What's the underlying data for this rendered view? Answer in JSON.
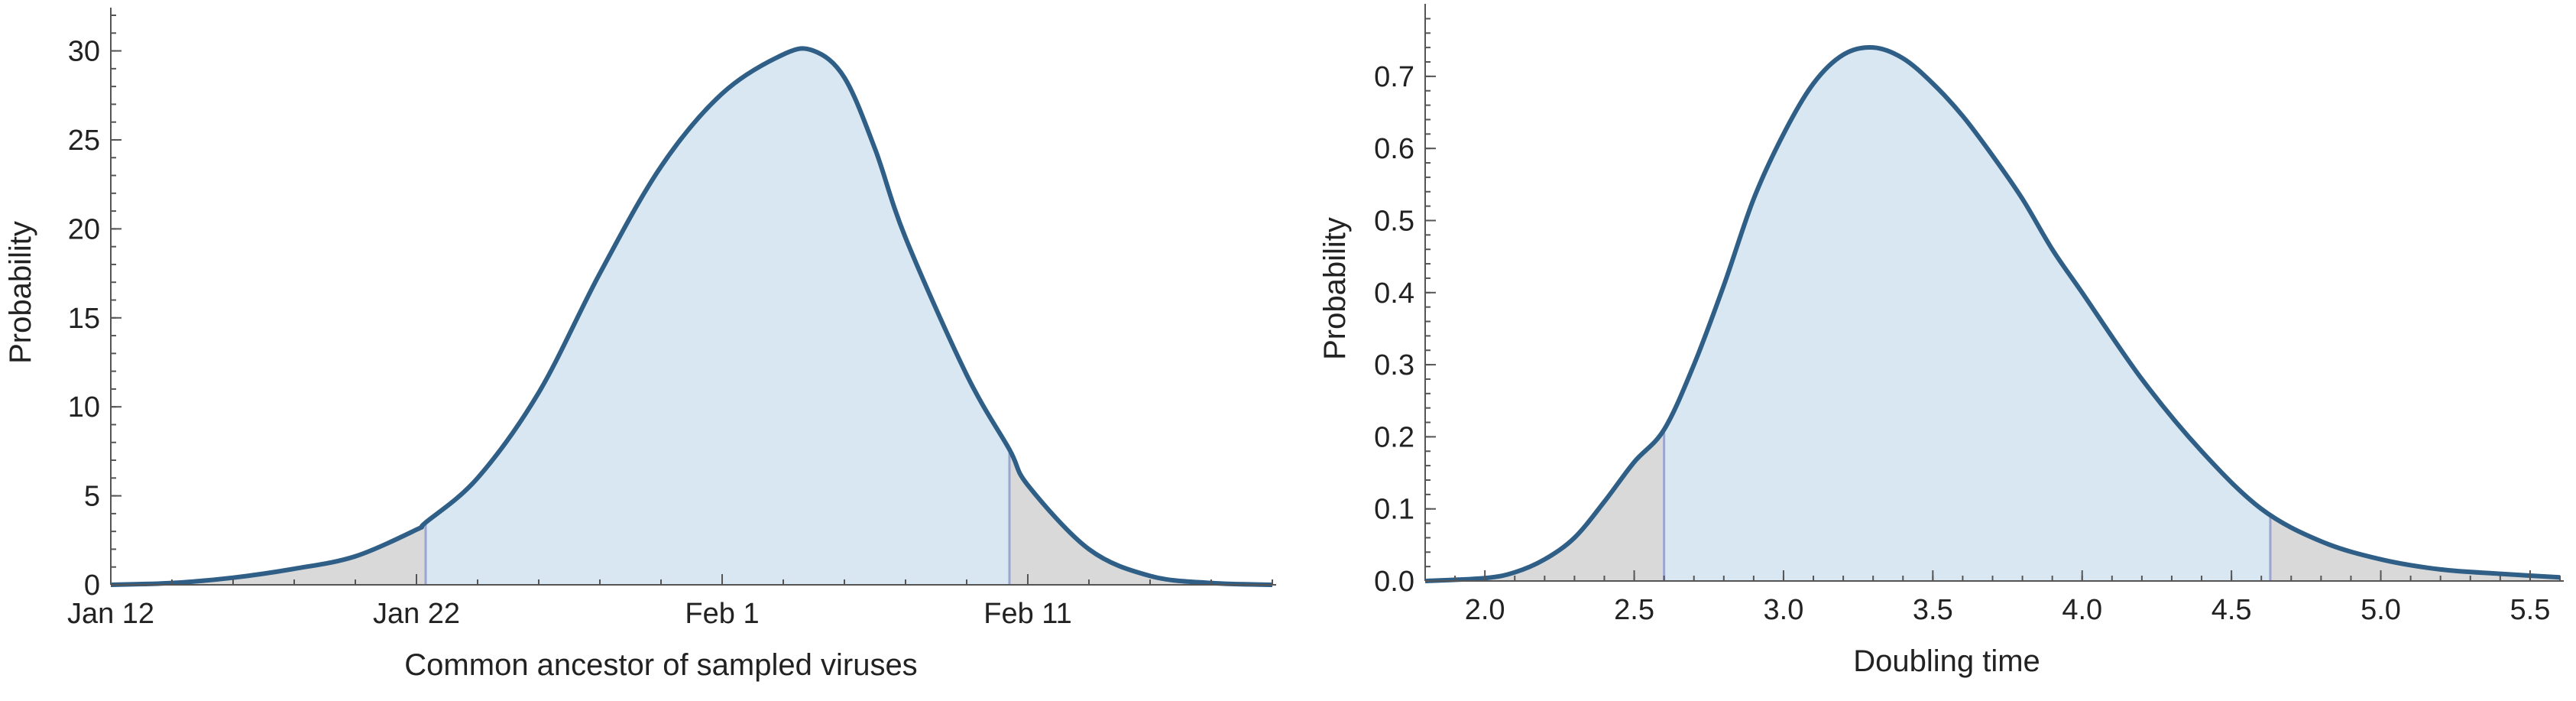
{
  "chart_data": [
    {
      "type": "area",
      "xlabel": "Common ancestor of sampled viruses",
      "ylabel": "Probability",
      "x_ticks": [
        "Jan 12",
        "Jan 22",
        "Feb 1",
        "Feb 11"
      ],
      "x_tick_positions": [
        0,
        10,
        20,
        30
      ],
      "x_unit": "days since Jan 12",
      "y_ticks": [
        0,
        5,
        10,
        15,
        20,
        25,
        30
      ],
      "xlim": [
        0,
        38
      ],
      "ylim": [
        0,
        32
      ],
      "interval": [
        10.3,
        29.4
      ],
      "x": [
        0,
        2,
        4,
        6,
        8,
        10,
        10.3,
        12,
        14,
        16,
        18,
        20,
        22,
        23,
        24,
        25,
        26,
        28,
        29.4,
        30,
        32,
        34,
        36,
        38
      ],
      "y": [
        0,
        0.1,
        0.4,
        0.9,
        1.6,
        3.1,
        3.5,
        6.0,
        10.8,
        17.5,
        23.5,
        27.6,
        29.8,
        30.0,
        28.5,
        24.5,
        19.5,
        11.8,
        7.6,
        5.6,
        2.0,
        0.5,
        0.1,
        0
      ]
    },
    {
      "type": "area",
      "xlabel": "Doubling time",
      "ylabel": "Probability",
      "x_ticks": [
        "2.0",
        "2.5",
        "3.0",
        "3.5",
        "4.0",
        "4.5",
        "5.0",
        "5.5"
      ],
      "x_tick_positions": [
        2.0,
        2.5,
        3.0,
        3.5,
        4.0,
        4.5,
        5.0,
        5.5
      ],
      "y_ticks": [
        "0.0",
        "0.1",
        "0.2",
        "0.3",
        "0.4",
        "0.5",
        "0.6",
        "0.7"
      ],
      "y_tick_positions": [
        0,
        0.1,
        0.2,
        0.3,
        0.4,
        0.5,
        0.6,
        0.7
      ],
      "xlim": [
        1.8,
        5.6
      ],
      "ylim": [
        0,
        0.79
      ],
      "interval": [
        2.6,
        4.63
      ],
      "x": [
        1.8,
        2.0,
        2.1,
        2.2,
        2.3,
        2.4,
        2.5,
        2.6,
        2.7,
        2.8,
        2.9,
        3.0,
        3.1,
        3.2,
        3.3,
        3.4,
        3.5,
        3.6,
        3.7,
        3.8,
        3.9,
        4.0,
        4.2,
        4.4,
        4.6,
        4.8,
        5.0,
        5.2,
        5.4,
        5.6
      ],
      "y": [
        0,
        0.004,
        0.012,
        0.03,
        0.06,
        0.11,
        0.165,
        0.21,
        0.3,
        0.41,
        0.53,
        0.62,
        0.69,
        0.73,
        0.74,
        0.725,
        0.69,
        0.645,
        0.59,
        0.53,
        0.46,
        0.4,
        0.28,
        0.18,
        0.1,
        0.055,
        0.03,
        0.016,
        0.01,
        0.005
      ]
    }
  ]
}
